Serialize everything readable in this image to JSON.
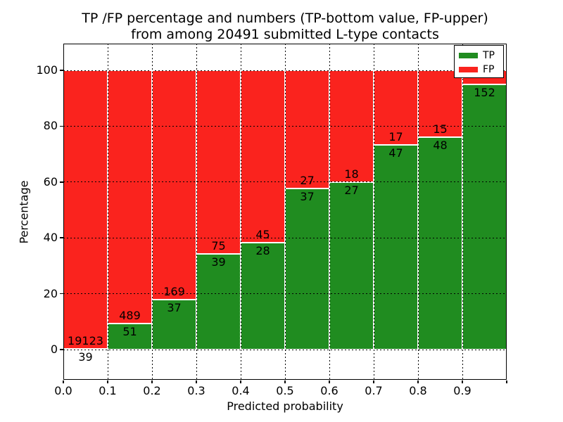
{
  "title": {
    "line1": "TP /FP percentage and numbers (TP-bottom value, FP-upper)",
    "line2": "from among 20491 submitted L-type contacts"
  },
  "axes": {
    "xlabel": "Predicted probability",
    "ylabel": "Percentage",
    "xtick_labels": [
      "0.0",
      "0.1",
      "0.2",
      "0.3",
      "0.4",
      "0.5",
      "0.6",
      "0.7",
      "0.8",
      "0.9"
    ],
    "ytick_labels": [
      "0",
      "20",
      "40",
      "60",
      "80",
      "100"
    ]
  },
  "legend": {
    "items": [
      {
        "label": "TP",
        "color": "#208c20"
      },
      {
        "label": "FP",
        "color": "#fa231e"
      }
    ]
  },
  "colors": {
    "tp_green": "#208c20",
    "fp_red": "#fa231e",
    "bar_edge": "#ffffff",
    "grid": "#000000",
    "background": "#ffffff",
    "text": "#000000"
  },
  "chart_data": {
    "type": "bar",
    "stacked": true,
    "title": "TP /FP percentage and numbers (TP-bottom value, FP-upper) from among 20491 submitted L-type contacts",
    "xlabel": "Predicted probability",
    "ylabel": "Percentage",
    "x_bin_edges": [
      0.0,
      0.1,
      0.2,
      0.3,
      0.4,
      0.5,
      0.6,
      0.7,
      0.8,
      0.9,
      1.0
    ],
    "categories": [
      "0.0-0.1",
      "0.1-0.2",
      "0.2-0.3",
      "0.3-0.4",
      "0.4-0.5",
      "0.5-0.6",
      "0.6-0.7",
      "0.7-0.8",
      "0.8-0.9",
      "0.9-1.0"
    ],
    "xlim": [
      0.0,
      1.0
    ],
    "ylim_data": [
      0,
      100
    ],
    "ylim_display": [
      -11,
      110
    ],
    "yticks": [
      0,
      20,
      40,
      60,
      80,
      100
    ],
    "grid": "dotted",
    "legend_position": "upper-right",
    "series": [
      {
        "name": "TP",
        "color": "#208c20",
        "percent": [
          0.2,
          9.4,
          18.0,
          34.2,
          38.4,
          57.8,
          60.0,
          73.4,
          76.2,
          95.0
        ],
        "counts": [
          39,
          51,
          37,
          39,
          28,
          37,
          27,
          47,
          48,
          152
        ],
        "labels": [
          "39",
          "51",
          "37",
          "39",
          "28",
          "37",
          "27",
          "47",
          "48",
          "152"
        ]
      },
      {
        "name": "FP",
        "color": "#fa231e",
        "percent": [
          99.8,
          90.6,
          82.0,
          65.8,
          61.6,
          42.2,
          40.0,
          26.6,
          23.8,
          5.0
        ],
        "counts": [
          19123,
          489,
          169,
          75,
          45,
          27,
          18,
          17,
          15,
          null
        ],
        "labels": [
          "19123",
          "489",
          "169",
          "75",
          "45",
          "27",
          "18",
          "17",
          "15",
          ""
        ]
      }
    ]
  }
}
